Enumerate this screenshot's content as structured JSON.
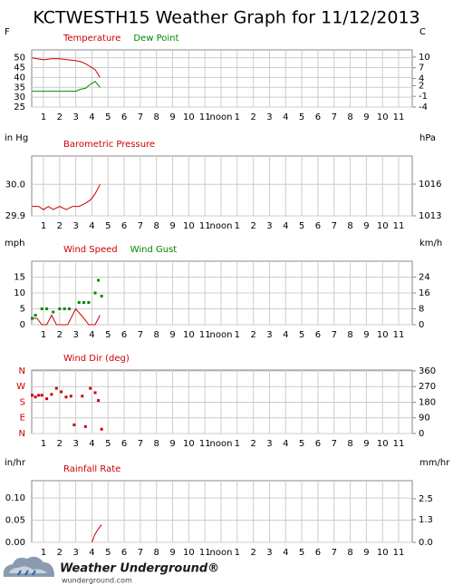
{
  "title": "KCTWESTH15 Weather Graph for 11/12/2013",
  "footer": {
    "brand": "Weather Underground®",
    "url": "wunderground.com"
  },
  "chart_data": [
    {
      "type": "line",
      "y_label": "F",
      "y2_label": "C",
      "grid": true,
      "xlim": [
        0.27,
        23.84
      ],
      "ylim": [
        25,
        54
      ],
      "y2lim": [
        -4,
        12
      ],
      "xticks": [
        1,
        2,
        3,
        4,
        5,
        6,
        7,
        8,
        9,
        10,
        11,
        {
          "value": 12,
          "label": "noon"
        },
        {
          "value": 13,
          "label": "1"
        },
        {
          "value": 14,
          "label": "2"
        },
        {
          "value": 15,
          "label": "3"
        },
        {
          "value": 16,
          "label": "4"
        },
        {
          "value": 17,
          "label": "5"
        },
        {
          "value": 18,
          "label": "6"
        },
        {
          "value": 19,
          "label": "7"
        },
        {
          "value": 20,
          "label": "8"
        },
        {
          "value": 21,
          "label": "9"
        },
        {
          "value": 22,
          "label": "10"
        },
        {
          "value": 23,
          "label": "11"
        }
      ],
      "yticks": [
        25,
        30,
        35,
        40,
        45,
        50
      ],
      "y2ticks": [
        -4,
        -1,
        2,
        4,
        7,
        10
      ],
      "series": [
        {
          "name": "Temperature",
          "color": "#cc0000",
          "x": [
            0.3,
            0.6,
            1.0,
            1.5,
            2.0,
            2.5,
            3.0,
            3.3,
            3.6,
            3.9,
            4.2,
            4.5
          ],
          "values": [
            50,
            49.5,
            49,
            49.5,
            49.5,
            49,
            48.5,
            48,
            47,
            45.5,
            44,
            40
          ]
        },
        {
          "name": "Dew Point",
          "color": "#008800",
          "x": [
            0.3,
            0.6,
            1.0,
            1.5,
            2.0,
            2.5,
            3.0,
            3.3,
            3.6,
            3.9,
            4.2,
            4.5
          ],
          "values": [
            33,
            33,
            33,
            33,
            33,
            33,
            33,
            34,
            34.5,
            36.5,
            38,
            35
          ]
        }
      ]
    },
    {
      "type": "line",
      "y_label": "in Hg",
      "y2_label": "hPa",
      "grid": true,
      "xlim": [
        0.27,
        23.84
      ],
      "ylim": [
        29.9,
        30.09
      ],
      "y2lim": [
        1013,
        1018.66
      ],
      "xticks": [
        1,
        2,
        3,
        4,
        5,
        6,
        7,
        8,
        9,
        10,
        11,
        {
          "value": 12,
          "label": "noon"
        },
        {
          "value": 13,
          "label": "1"
        },
        {
          "value": 14,
          "label": "2"
        },
        {
          "value": 15,
          "label": "3"
        },
        {
          "value": 16,
          "label": "4"
        },
        {
          "value": 17,
          "label": "5"
        },
        {
          "value": 18,
          "label": "6"
        },
        {
          "value": 19,
          "label": "7"
        },
        {
          "value": 20,
          "label": "8"
        },
        {
          "value": 21,
          "label": "9"
        },
        {
          "value": 22,
          "label": "10"
        },
        {
          "value": 23,
          "label": "11"
        }
      ],
      "yticks": [
        29.9,
        {
          "value": 30,
          "label": "30.0"
        }
      ],
      "y2ticks": [
        1013,
        1016
      ],
      "series": [
        {
          "name": "Barometric Pressure",
          "color": "#cc0000",
          "x": [
            0.3,
            0.7,
            1.0,
            1.3,
            1.6,
            2.0,
            2.4,
            2.8,
            3.2,
            3.6,
            3.9,
            4.2,
            4.5
          ],
          "values": [
            29.93,
            29.93,
            29.92,
            29.93,
            29.92,
            29.93,
            29.92,
            29.93,
            29.93,
            29.94,
            29.95,
            29.97,
            30.0
          ]
        }
      ]
    },
    {
      "type": "line",
      "y_label": "mph",
      "y2_label": "km/h",
      "grid": true,
      "xlim": [
        0.27,
        23.84
      ],
      "ylim": [
        0,
        20
      ],
      "y2lim": [
        0,
        32
      ],
      "xticks": [
        1,
        2,
        3,
        4,
        5,
        6,
        7,
        8,
        9,
        10,
        11,
        {
          "value": 12,
          "label": "noon"
        },
        {
          "value": 13,
          "label": "1"
        },
        {
          "value": 14,
          "label": "2"
        },
        {
          "value": 15,
          "label": "3"
        },
        {
          "value": 16,
          "label": "4"
        },
        {
          "value": 17,
          "label": "5"
        },
        {
          "value": 18,
          "label": "6"
        },
        {
          "value": 19,
          "label": "7"
        },
        {
          "value": 20,
          "label": "8"
        },
        {
          "value": 21,
          "label": "9"
        },
        {
          "value": 22,
          "label": "10"
        },
        {
          "value": 23,
          "label": "11"
        }
      ],
      "yticks": [
        0,
        5,
        10,
        15
      ],
      "y2ticks": [
        0,
        8,
        16,
        24
      ],
      "series": [
        {
          "name": "Wind Speed",
          "color": "#cc0000",
          "x": [
            0.3,
            0.6,
            0.9,
            1.2,
            1.5,
            1.8,
            2.5,
            3.0,
            3.5,
            3.8,
            4.2,
            4.5
          ],
          "values": [
            2,
            2,
            0,
            0,
            3,
            0,
            0,
            5,
            2,
            0,
            0,
            3
          ]
        },
        {
          "name": "Wind Gust",
          "color": "#008800",
          "mark": "square",
          "x": [
            0.3,
            0.5,
            0.9,
            1.2,
            1.6,
            2.0,
            2.3,
            2.6,
            3.2,
            3.5,
            3.8,
            4.2,
            4.4,
            4.6
          ],
          "values": [
            2,
            3,
            5,
            5,
            4,
            5,
            5,
            5,
            7,
            7,
            7,
            10,
            14,
            9
          ]
        }
      ]
    },
    {
      "type": "scatter",
      "grid": true,
      "xlim": [
        0.27,
        23.84
      ],
      "ylim": [
        0,
        365
      ],
      "y2lim": [
        0,
        365
      ],
      "tick_color": "#cc0000",
      "xticks": [
        1,
        2,
        3,
        4,
        5,
        6,
        7,
        8,
        9,
        10,
        11,
        {
          "value": 12,
          "label": "noon"
        },
        {
          "value": 13,
          "label": "1"
        },
        {
          "value": 14,
          "label": "2"
        },
        {
          "value": 15,
          "label": "3"
        },
        {
          "value": 16,
          "label": "4"
        },
        {
          "value": 17,
          "label": "5"
        },
        {
          "value": 18,
          "label": "6"
        },
        {
          "value": 19,
          "label": "7"
        },
        {
          "value": 20,
          "label": "8"
        },
        {
          "value": 21,
          "label": "9"
        },
        {
          "value": 22,
          "label": "10"
        },
        {
          "value": 23,
          "label": "11"
        }
      ],
      "yticks": [
        {
          "value": 0,
          "label": "N"
        },
        {
          "value": 90,
          "label": "E"
        },
        {
          "value": 180,
          "label": "S"
        },
        {
          "value": 270,
          "label": "W"
        },
        {
          "value": 360,
          "label": "N"
        }
      ],
      "y2ticks": [
        0,
        90,
        180,
        270,
        360
      ],
      "series": [
        {
          "name": "Wind Dir (deg)",
          "color": "#cc0000",
          "mark": "square",
          "x": [
            0.3,
            0.5,
            0.7,
            0.9,
            1.2,
            1.5,
            1.8,
            2.1,
            2.4,
            2.7,
            2.9,
            3.4,
            3.6,
            3.9,
            4.2,
            4.4,
            4.6
          ],
          "values": [
            220,
            210,
            220,
            220,
            200,
            225,
            260,
            240,
            210,
            215,
            50,
            215,
            40,
            260,
            235,
            190,
            25
          ]
        }
      ]
    },
    {
      "type": "line",
      "y_label": "in/hr",
      "y2_label": "mm/hr",
      "grid": true,
      "xlim": [
        0.27,
        23.84
      ],
      "ylim": [
        0,
        0.139
      ],
      "y2lim": [
        0,
        3.53
      ],
      "xticks": [
        1,
        2,
        3,
        4,
        5,
        6,
        7,
        8,
        9,
        10,
        11,
        {
          "value": 12,
          "label": "noon"
        },
        {
          "value": 13,
          "label": "1"
        },
        {
          "value": 14,
          "label": "2"
        },
        {
          "value": 15,
          "label": "3"
        },
        {
          "value": 16,
          "label": "4"
        },
        {
          "value": 17,
          "label": "5"
        },
        {
          "value": 18,
          "label": "6"
        },
        {
          "value": 19,
          "label": "7"
        },
        {
          "value": 20,
          "label": "8"
        },
        {
          "value": 21,
          "label": "9"
        },
        {
          "value": 22,
          "label": "10"
        },
        {
          "value": 23,
          "label": "11"
        }
      ],
      "yticks": [
        {
          "value": 0,
          "label": "0.00"
        },
        0.05,
        {
          "value": 0.1,
          "label": "0.10"
        }
      ],
      "y2ticks": [
        {
          "value": 0,
          "label": "0.0"
        },
        1.3,
        2.5
      ],
      "series": [
        {
          "name": "Rainfall Rate",
          "color": "#cc0000",
          "x": [
            4.0,
            4.15,
            4.3,
            4.45,
            4.6
          ],
          "values": [
            0,
            0.015,
            0.025,
            0.033,
            0.04
          ]
        }
      ]
    }
  ]
}
